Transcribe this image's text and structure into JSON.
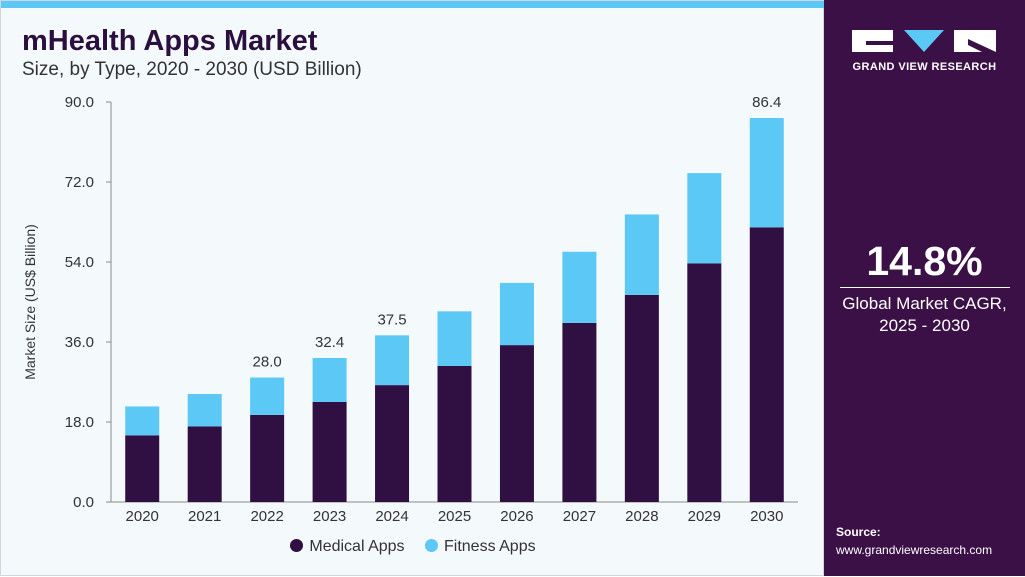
{
  "header": {
    "title": "mHealth Apps Market",
    "subtitle": "Size, by Type, 2020 - 2030 (USD Billion)"
  },
  "brand": {
    "name": "GRAND VIEW RESEARCH",
    "logo_icon": "gvr-logo-icon"
  },
  "side_panel": {
    "cagr_value": "14.8%",
    "cagr_label_line1": "Global Market CAGR,",
    "cagr_label_line2": "2025 - 2030",
    "source_title": "Source:",
    "source_url": "www.grandviewresearch.com"
  },
  "colors": {
    "medical": "#300f43",
    "fitness": "#5bc8f5",
    "side_panel": "#3b1046",
    "accent_bar": "#5bc8f5"
  },
  "chart_data": {
    "type": "bar",
    "stacked": true,
    "title": "mHealth Apps Market",
    "subtitle": "Size, by Type, 2020 - 2030 (USD Billion)",
    "xlabel": "",
    "ylabel": "Market Size (US$ Billion)",
    "ylim": [
      0,
      90
    ],
    "yticks": [
      "0.0",
      "18.0",
      "36.0",
      "54.0",
      "72.0",
      "90.0"
    ],
    "ytick_values": [
      0,
      18,
      36,
      54,
      72,
      90
    ],
    "grid": false,
    "legend_position": "bottom",
    "categories": [
      "2020",
      "2021",
      "2022",
      "2023",
      "2024",
      "2025",
      "2026",
      "2027",
      "2028",
      "2029",
      "2030"
    ],
    "series": [
      {
        "name": "Medical Apps",
        "color": "#300f43",
        "values": [
          15.0,
          17.0,
          19.6,
          22.5,
          26.3,
          30.6,
          35.3,
          40.3,
          46.6,
          53.7,
          61.8
        ]
      },
      {
        "name": "Fitness Apps",
        "color": "#5bc8f5",
        "values": [
          6.5,
          7.3,
          8.4,
          9.9,
          11.2,
          12.3,
          14.0,
          16.0,
          18.1,
          20.3,
          24.6
        ]
      }
    ],
    "bar_labels": [
      null,
      null,
      "28.0",
      "32.4",
      "37.5",
      null,
      null,
      null,
      null,
      null,
      "86.4"
    ]
  }
}
